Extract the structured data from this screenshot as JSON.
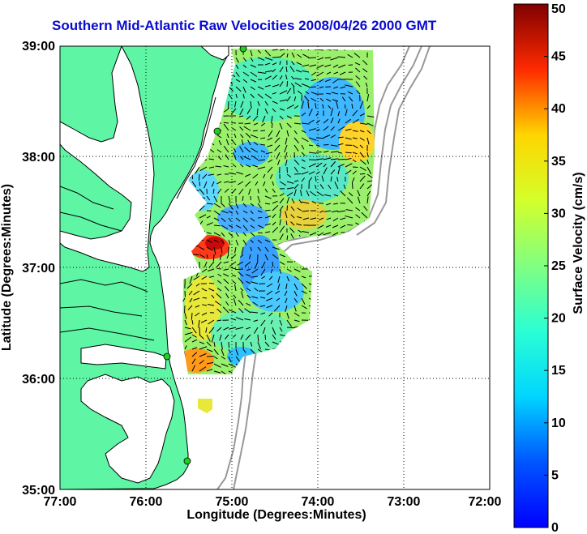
{
  "title": "Southern Mid-Atlantic Raw Velocities 2008/04/26 2000 GMT",
  "chart_data": {
    "type": "heatmap",
    "subtype": "ocean surface current vector map",
    "xlabel": "Longitude (Degrees:Minutes)",
    "ylabel": "Latitude (Degrees:Minutes)",
    "x_ticks": [
      "77:00",
      "76:00",
      "75:00",
      "74:00",
      "73:00",
      "72:00"
    ],
    "y_ticks": [
      "39:00",
      "38:00",
      "37:00",
      "36:00",
      "35:00"
    ],
    "x_range_deg_west": [
      77,
      72
    ],
    "y_range_deg_north": [
      35,
      39
    ],
    "grid": "dotted",
    "colorbar": {
      "label": "Surface Velocity (cm/s)",
      "ticks": [
        "0",
        "5",
        "10",
        "15",
        "20",
        "25",
        "30",
        "35",
        "40",
        "45",
        "50"
      ],
      "range": [
        0,
        50
      ],
      "colormap": "jet"
    },
    "colors": {
      "land": "#5ef5a5",
      "coast_line": "#000000",
      "bathymetry": "#999999",
      "site_marker": "#20d020",
      "title": "#0b0bd0"
    }
  }
}
